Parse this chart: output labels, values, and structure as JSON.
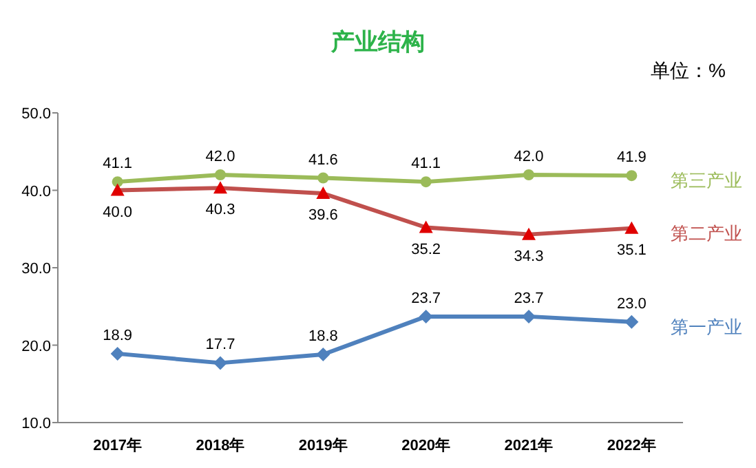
{
  "chart_data": {
    "type": "line",
    "title": "产业结构",
    "annotations": [
      "单位：%"
    ],
    "categories": [
      "2017年",
      "2018年",
      "2019年",
      "2020年",
      "2021年",
      "2022年"
    ],
    "series": [
      {
        "name": "第三产业",
        "color": "#9bbb59",
        "marker": "circle",
        "values": [
          41.1,
          42.0,
          41.6,
          41.1,
          42.0,
          41.9
        ],
        "value_labels": [
          "41.1",
          "42.0",
          "41.6",
          "41.1",
          "42.0",
          "41.9"
        ]
      },
      {
        "name": "第二产业",
        "color": "#c0504d",
        "marker": "triangle",
        "values": [
          40.0,
          40.3,
          39.6,
          35.2,
          34.3,
          35.1
        ],
        "value_labels": [
          "40.0",
          "40.3",
          "39.6",
          "35.2",
          "34.3",
          "35.1"
        ]
      },
      {
        "name": "第一产业",
        "color": "#4f81bd",
        "marker": "diamond",
        "values": [
          18.9,
          17.7,
          18.8,
          23.7,
          23.7,
          23.0
        ],
        "value_labels": [
          "18.9",
          "17.7",
          "18.8",
          "23.7",
          "23.7",
          "23.0"
        ]
      }
    ],
    "ylim": [
      10,
      50
    ],
    "yticks": [
      {
        "value": 10,
        "label": "10.0"
      },
      {
        "value": 20,
        "label": "20.0"
      },
      {
        "value": 30,
        "label": "30.0"
      },
      {
        "value": 40,
        "label": "40.0"
      },
      {
        "value": 50,
        "label": "50.0"
      }
    ],
    "line_style": "solid"
  }
}
